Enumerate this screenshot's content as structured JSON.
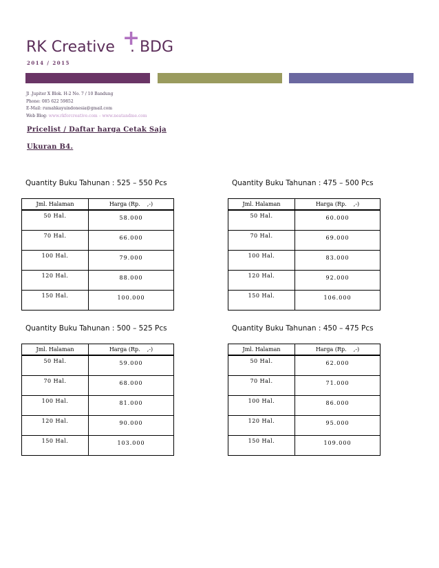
{
  "header": {
    "title": "RK Creative",
    "plus": "+",
    "suffix": ". BDG",
    "year": "2014 / 2015",
    "bar_colors": [
      "#6a3566",
      "#9a9b5e",
      "#6b68a0"
    ]
  },
  "contact": {
    "address": "Jl .Jupiter X Blok. H-2 No. 7 / 10 Bandung",
    "phone": "Phone: 085 622 59852",
    "email": "E-Mail: rumahkayuindonesia@gmail.com",
    "web_label": "Web Blog: ",
    "web_links": "www.rkforcreative.com – www.neatandme.com"
  },
  "headings": {
    "pricelist": "Pricelist / Daftar harga Cetak Saja",
    "size": "Ukuran B4."
  },
  "tables": [
    {
      "title": "Quantity Buku Tahunan : 525 – 550 Pcs",
      "col1": "Jml. Halaman",
      "col2": "Harga (Rp.    ,-)",
      "rows": [
        [
          "50 Hal.",
          "58.000"
        ],
        [
          "70 Hal.",
          "66.000"
        ],
        [
          "100 Hal.",
          "79.000"
        ],
        [
          "120 Hal.",
          "88.000"
        ],
        [
          "150 Hal.",
          "100.000"
        ]
      ]
    },
    {
      "title": "Quantity Buku Tahunan : 475 – 500 Pcs",
      "col1": "Jml. Halaman",
      "col2": "Harga (Rp.    ,-)",
      "rows": [
        [
          "50 Hal.",
          "60.000"
        ],
        [
          "70 Hal.",
          "69.000"
        ],
        [
          "100 Hal.",
          "83.000"
        ],
        [
          "120 Hal.",
          "92.000"
        ],
        [
          "150 Hal.",
          "106.000"
        ]
      ]
    },
    {
      "title": "Quantity Buku Tahunan : 500 – 525 Pcs",
      "col1": "Jml. Halaman",
      "col2": "Harga (Rp.    ,-)",
      "rows": [
        [
          "50 Hal.",
          "59.000"
        ],
        [
          "70 Hal.",
          "68.000"
        ],
        [
          "100 Hal.",
          "81.000"
        ],
        [
          "120 Hal.",
          "90.000"
        ],
        [
          "150 Hal.",
          "103.000"
        ]
      ]
    },
    {
      "title": "Quantity Buku Tahunan : 450 – 475 Pcs",
      "col1": "Jml. Halaman",
      "col2": "Harga (Rp.    ,-)",
      "rows": [
        [
          "50 Hal.",
          "62.000"
        ],
        [
          "70 Hal.",
          "71.000"
        ],
        [
          "100 Hal.",
          "86.000"
        ],
        [
          "120 Hal.",
          "95.000"
        ],
        [
          "150 Hal.",
          "109.000"
        ]
      ]
    }
  ]
}
